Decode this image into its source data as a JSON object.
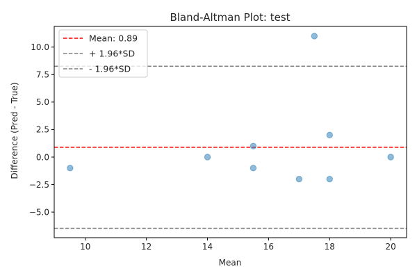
{
  "chart_data": {
    "type": "scatter",
    "title": "Bland-Altman Plot: test",
    "xlabel": "Mean",
    "ylabel": "Difference (Pred - True)",
    "xlim": [
      8.98,
      20.52
    ],
    "ylim": [
      -7.33,
      11.88
    ],
    "xticks": [
      10,
      12,
      14,
      16,
      18,
      20
    ],
    "xtick_labels": [
      "10",
      "12",
      "14",
      "16",
      "18",
      "20"
    ],
    "yticks": [
      -5.0,
      -2.5,
      0.0,
      2.5,
      5.0,
      7.5,
      10.0
    ],
    "ytick_labels": [
      "−5.0",
      "−2.5",
      "0.0",
      "2.5",
      "5.0",
      "7.5",
      "10.0"
    ],
    "grid": false,
    "points": {
      "color": "#1f77b4",
      "x": [
        9.5,
        14,
        15.5,
        15.5,
        17,
        17.5,
        18,
        18,
        20
      ],
      "y": [
        -1,
        0,
        1,
        -1,
        -2,
        11,
        2,
        -2,
        0
      ]
    },
    "reference_lines": [
      {
        "name": "Mean: 0.89",
        "y": 0.89,
        "color": "#ff0000",
        "style": "dashed"
      },
      {
        "name": "+ 1.96*SD",
        "y": 8.26,
        "color": "#808080",
        "style": "dashed"
      },
      {
        "name": "- 1.96*SD",
        "y": -6.48,
        "color": "#808080",
        "style": "dashed"
      }
    ],
    "legend": {
      "placement": "upper-left",
      "entries": [
        "Mean: 0.89",
        "+ 1.96*SD",
        "- 1.96*SD"
      ]
    }
  }
}
